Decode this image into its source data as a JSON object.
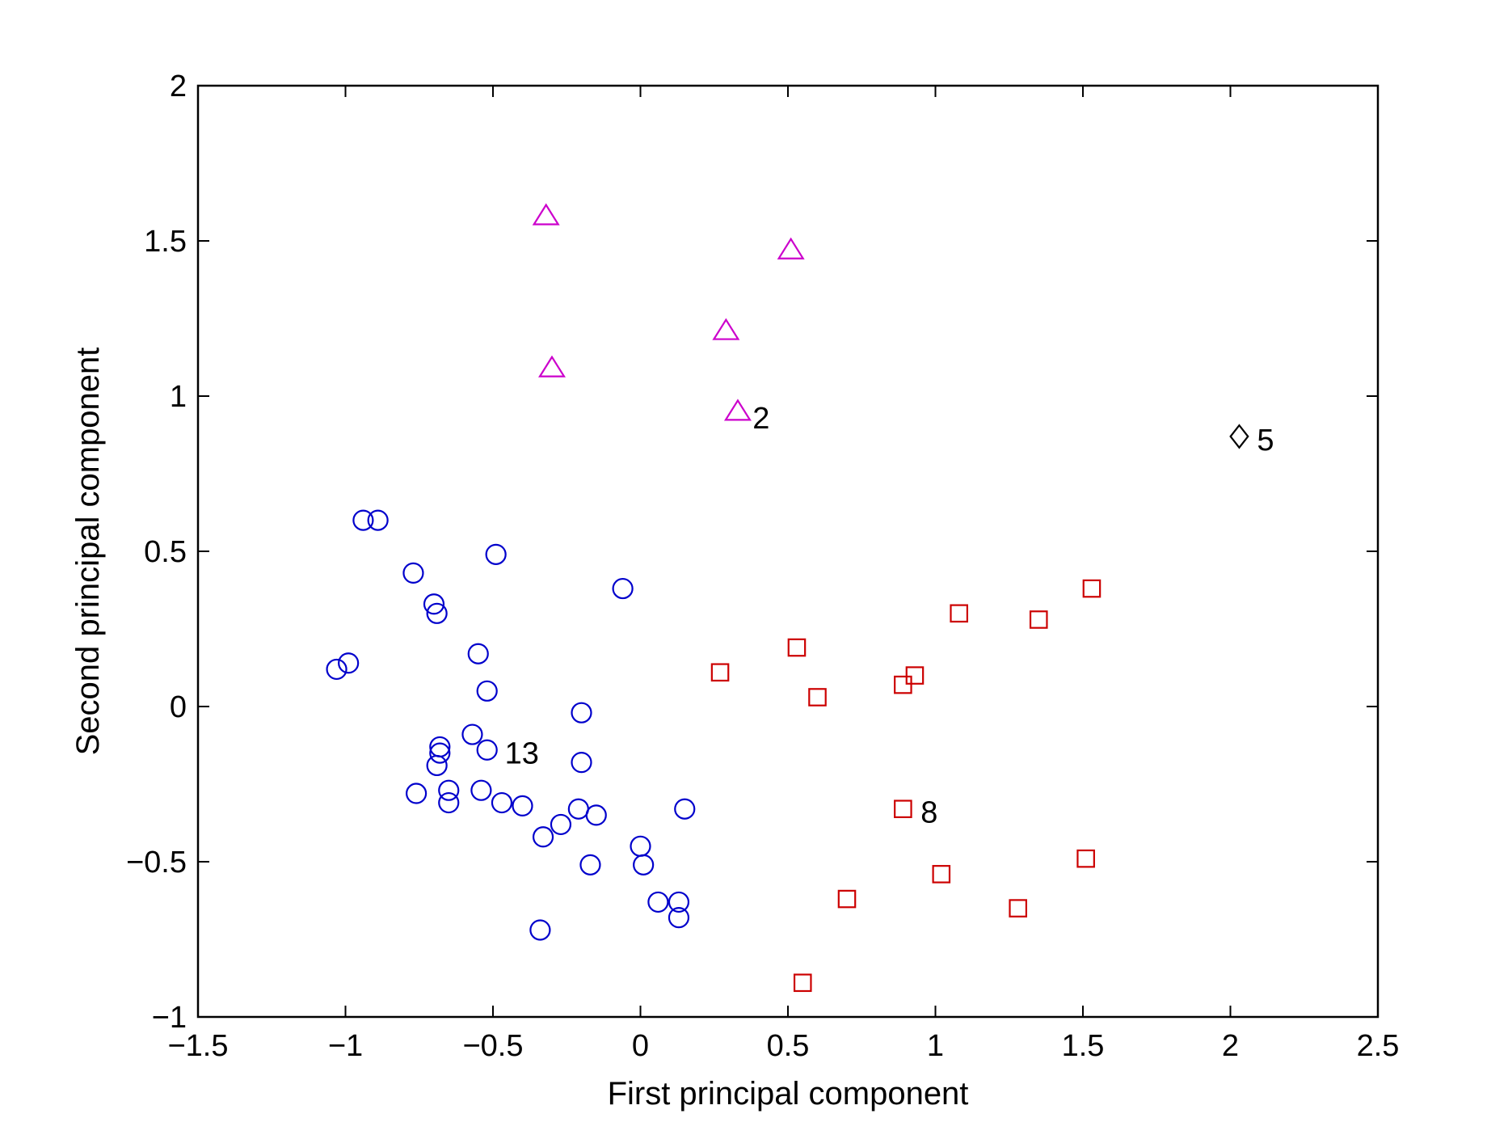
{
  "chart_data": {
    "type": "scatter",
    "title": "",
    "xlabel": "First principal component",
    "ylabel": "Second principal component",
    "xlim": [
      -1.5,
      2.5
    ],
    "ylim": [
      -1,
      2
    ],
    "xticks": [
      -1.5,
      -1,
      -0.5,
      0,
      0.5,
      1,
      1.5,
      2,
      2.5
    ],
    "yticks": [
      -1,
      -0.5,
      0,
      0.5,
      1,
      1.5,
      2
    ],
    "xtick_labels": [
      "−1.5",
      "−1",
      "−0.5",
      "0",
      "0.5",
      "1",
      "1.5",
      "2",
      "2.5"
    ],
    "ytick_labels": [
      "−1",
      "−0.5",
      "0",
      "0.5",
      "1",
      "1.5",
      "2"
    ],
    "grid": false,
    "series": [
      {
        "marker": "circle",
        "color": "#0000cc",
        "points": [
          [
            -0.94,
            0.6
          ],
          [
            -0.89,
            0.6
          ],
          [
            -0.77,
            0.43
          ],
          [
            -0.49,
            0.49
          ],
          [
            -0.7,
            0.33
          ],
          [
            -0.69,
            0.3
          ],
          [
            -0.06,
            0.38
          ],
          [
            -1.03,
            0.12
          ],
          [
            -0.99,
            0.14
          ],
          [
            -0.55,
            0.17
          ],
          [
            -0.52,
            0.05
          ],
          [
            -0.2,
            -0.02
          ],
          [
            -0.57,
            -0.09
          ],
          [
            -0.68,
            -0.13
          ],
          [
            -0.68,
            -0.15
          ],
          [
            -0.52,
            -0.14
          ],
          [
            -0.69,
            -0.19
          ],
          [
            -0.2,
            -0.18
          ],
          [
            -0.76,
            -0.28
          ],
          [
            -0.65,
            -0.27
          ],
          [
            -0.65,
            -0.31
          ],
          [
            -0.54,
            -0.27
          ],
          [
            -0.47,
            -0.31
          ],
          [
            -0.4,
            -0.32
          ],
          [
            -0.21,
            -0.33
          ],
          [
            -0.15,
            -0.35
          ],
          [
            0.15,
            -0.33
          ],
          [
            -0.27,
            -0.38
          ],
          [
            -0.33,
            -0.42
          ],
          [
            0.0,
            -0.45
          ],
          [
            0.01,
            -0.51
          ],
          [
            -0.17,
            -0.51
          ],
          [
            0.06,
            -0.63
          ],
          [
            0.13,
            -0.63
          ],
          [
            0.13,
            -0.68
          ],
          [
            -0.34,
            -0.72
          ]
        ]
      },
      {
        "marker": "triangle",
        "color": "#cc00cc",
        "points": [
          [
            -0.32,
            1.58
          ],
          [
            0.51,
            1.47
          ],
          [
            0.29,
            1.21
          ],
          [
            -0.3,
            1.09
          ],
          [
            0.33,
            0.95
          ]
        ]
      },
      {
        "marker": "square",
        "color": "#cc0000",
        "points": [
          [
            1.53,
            0.38
          ],
          [
            1.08,
            0.3
          ],
          [
            1.35,
            0.28
          ],
          [
            0.53,
            0.19
          ],
          [
            0.27,
            0.11
          ],
          [
            0.93,
            0.1
          ],
          [
            0.89,
            0.07
          ],
          [
            0.6,
            0.03
          ],
          [
            0.89,
            -0.33
          ],
          [
            1.51,
            -0.49
          ],
          [
            1.02,
            -0.54
          ],
          [
            0.7,
            -0.62
          ],
          [
            1.28,
            -0.65
          ],
          [
            0.55,
            -0.89
          ]
        ]
      },
      {
        "marker": "diamond",
        "color": "#000000",
        "points": [
          [
            2.03,
            0.87
          ]
        ]
      }
    ],
    "annotations": [
      {
        "text": "2",
        "x": 0.38,
        "y": 0.93
      },
      {
        "text": "5",
        "x": 2.09,
        "y": 0.86
      },
      {
        "text": "13",
        "x": -0.46,
        "y": -0.15
      },
      {
        "text": "8",
        "x": 0.95,
        "y": -0.34
      }
    ]
  }
}
